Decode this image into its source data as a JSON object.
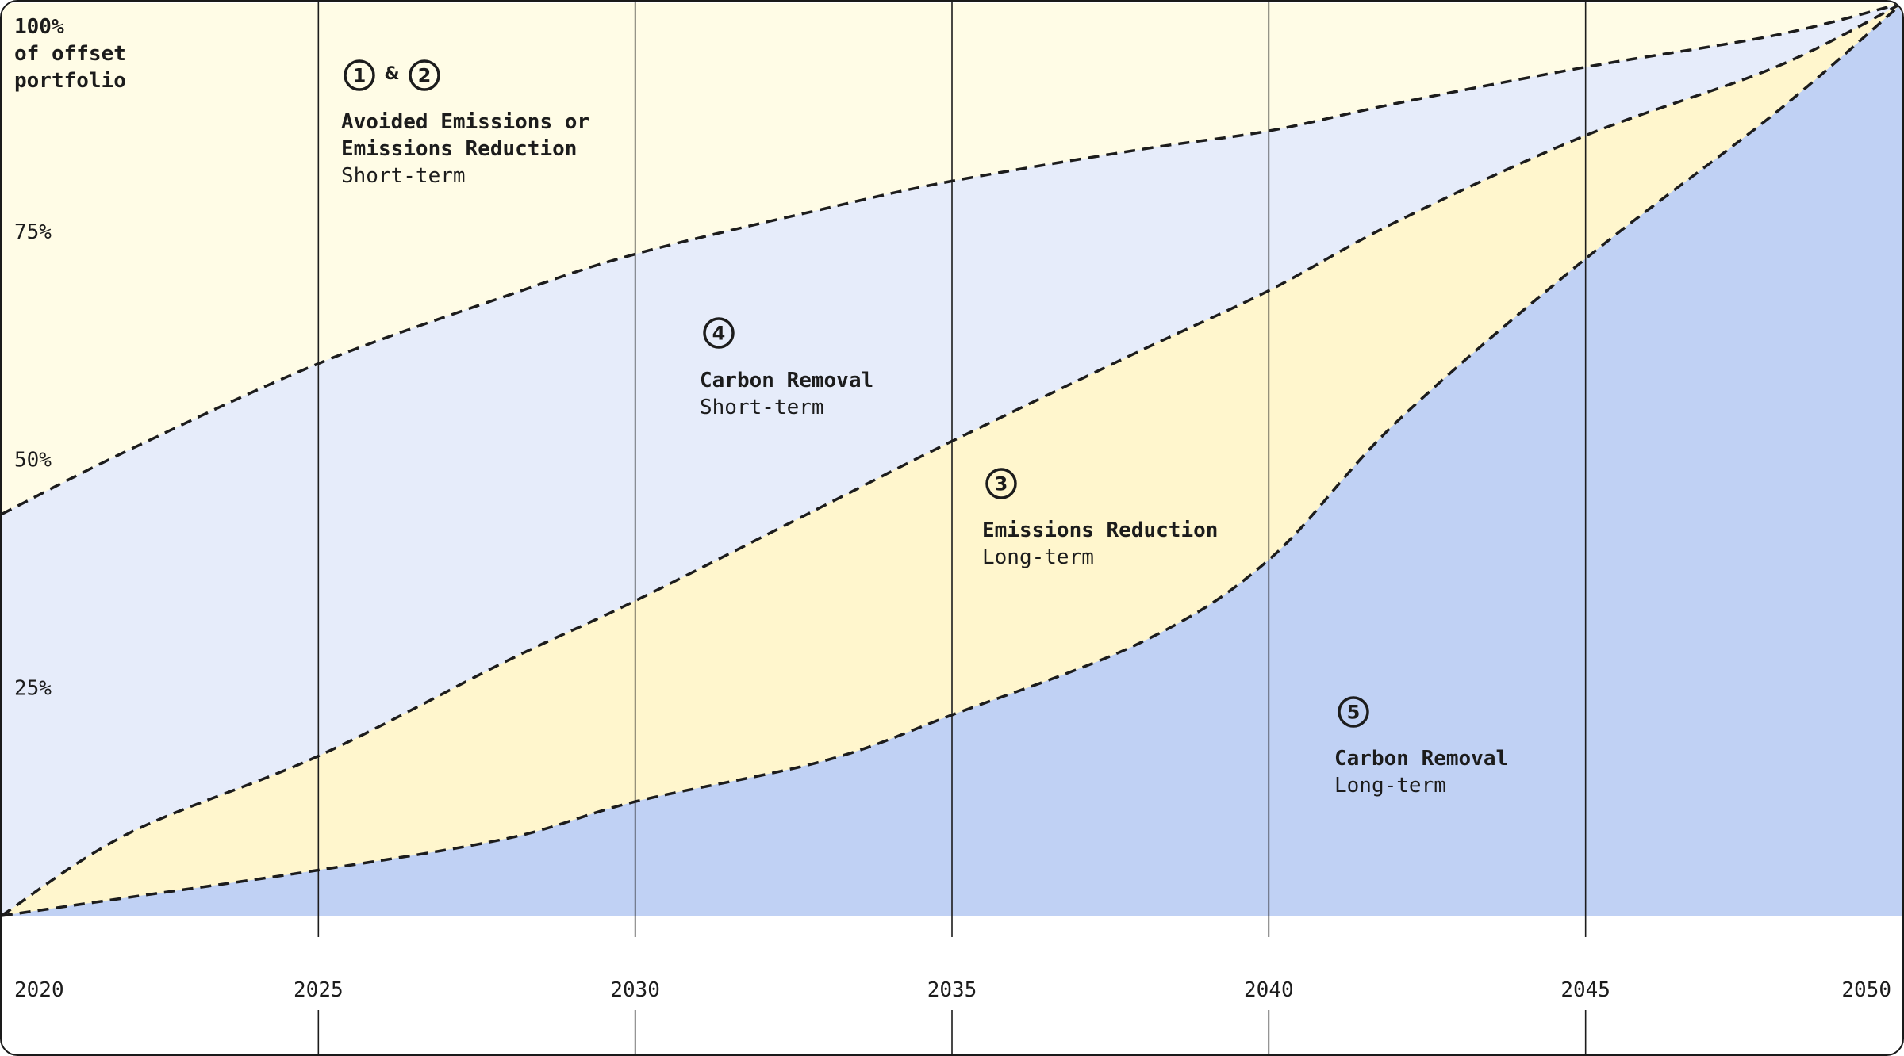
{
  "chart_data": {
    "type": "area",
    "stacked": true,
    "title_lines": [
      "100%",
      "of offset",
      "portfolio"
    ],
    "x": [
      2020,
      2025,
      2030,
      2035,
      2040,
      2045,
      2050
    ],
    "x_tick_labels": [
      "2020",
      "2025",
      "2030",
      "2035",
      "2040",
      "2045",
      "2050"
    ],
    "y_tick_labels": [
      "75%",
      "50%",
      "25%"
    ],
    "y_ticks": [
      75,
      50,
      25
    ],
    "ylim": [
      0,
      100
    ],
    "xlim": [
      2020,
      2050
    ],
    "grid": "vertical lines at each x tick",
    "boundaries": {
      "removal_long_term_top": {
        "x": [
          2020,
          2022,
          2025,
          2028,
          2030,
          2033,
          2035,
          2038,
          2040,
          2042,
          2045,
          2048,
          2050
        ],
        "y": [
          0,
          2,
          5,
          8.5,
          12.5,
          17,
          22,
          30,
          39,
          54,
          72,
          88,
          100
        ]
      },
      "reduction_long_term_top": {
        "x": [
          2020,
          2022,
          2025,
          2028,
          2030,
          2033,
          2035,
          2038,
          2040,
          2042,
          2045,
          2048,
          2050
        ],
        "y": [
          0,
          9,
          17.5,
          28,
          34.5,
          45,
          52,
          62,
          68.5,
          76,
          85.5,
          93,
          100
        ]
      },
      "removal_short_term_top": {
        "x": [
          2020,
          2022,
          2025,
          2028,
          2030,
          2033,
          2035,
          2038,
          2040,
          2042,
          2045,
          2048,
          2050
        ],
        "y": [
          44,
          51,
          60.5,
          68,
          72.5,
          77.5,
          80.5,
          84,
          86,
          89,
          93,
          96.5,
          100
        ]
      }
    },
    "regions": [
      {
        "badges": [
          "1",
          "2"
        ],
        "connector": "&",
        "name_lines": [
          "Avoided Emissions or",
          "Emissions Reduction"
        ],
        "term": "Short-term",
        "color": "#fffce6"
      },
      {
        "badges": [
          "4"
        ],
        "name_lines": [
          "Carbon Removal"
        ],
        "term": "Short-term",
        "color": "#e6ecfa"
      },
      {
        "badges": [
          "3"
        ],
        "name_lines": [
          "Emissions Reduction"
        ],
        "term": "Long-term",
        "color": "#fff6cd"
      },
      {
        "badges": [
          "5"
        ],
        "name_lines": [
          "Carbon Removal"
        ],
        "term": "Long-term",
        "color": "#c0d1f4"
      }
    ],
    "line_color": "#1c1c1c",
    "gridline_color": "#1c1c1c"
  }
}
